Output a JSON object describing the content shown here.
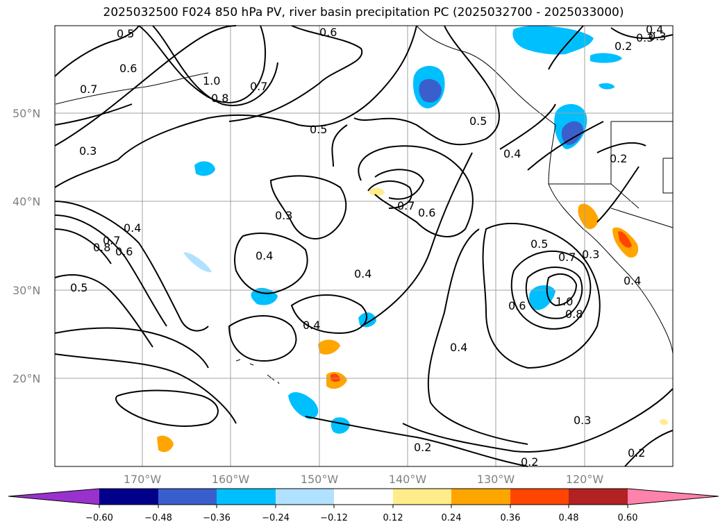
{
  "title": "2025032500 F024 850 hPa PV, river basin precipitation PC (2025032700 - 2025033000)",
  "map": {
    "lat_labels": [
      "50°N",
      "40°N",
      "30°N",
      "20°N"
    ],
    "lon_labels": [
      "170°W",
      "160°W",
      "150°W",
      "140°W",
      "130°W",
      "120°W"
    ],
    "contour_labels": [
      {
        "text": "0.5"
      },
      {
        "text": "0.6"
      },
      {
        "text": "0.7"
      },
      {
        "text": "1.0"
      },
      {
        "text": "0.8"
      },
      {
        "text": "0.7"
      },
      {
        "text": "0.6"
      },
      {
        "text": "0.2"
      },
      {
        "text": "0.4"
      },
      {
        "text": "0.3"
      },
      {
        "text": "0.5"
      },
      {
        "text": "0.3"
      },
      {
        "text": "0.5"
      },
      {
        "text": "0.4"
      },
      {
        "text": "0.2"
      },
      {
        "text": "0.4"
      },
      {
        "text": "0.8"
      },
      {
        "text": "0.7"
      },
      {
        "text": "0.6"
      },
      {
        "text": "0.5"
      },
      {
        "text": "0.3"
      },
      {
        "text": "0.4"
      },
      {
        "text": "0.4"
      },
      {
        "text": "0.7"
      },
      {
        "text": "0.6"
      },
      {
        "text": "0.4"
      },
      {
        "text": "0.4"
      },
      {
        "text": "0.5"
      },
      {
        "text": "0.7"
      },
      {
        "text": "0.3"
      },
      {
        "text": "1.0"
      },
      {
        "text": "0.8"
      },
      {
        "text": "0.6"
      },
      {
        "text": "0.4"
      },
      {
        "text": "0.3"
      },
      {
        "text": "0.2"
      },
      {
        "text": "0.2"
      },
      {
        "text": "0.2"
      },
      {
        "text": "0.3"
      }
    ]
  },
  "colorbar": {
    "ticks": [
      "−0.60",
      "−0.48",
      "−0.36",
      "−0.24",
      "−0.12",
      "0.12",
      "0.24",
      "0.36",
      "0.48",
      "0.60"
    ],
    "colors": [
      "#9932cc",
      "#00008b",
      "#3a5fcd",
      "#00bfff",
      "#b0e2ff",
      "#ffffff",
      "#ffec8b",
      "#ffa500",
      "#ff4500",
      "#b22222",
      "#ff82ab"
    ]
  }
}
